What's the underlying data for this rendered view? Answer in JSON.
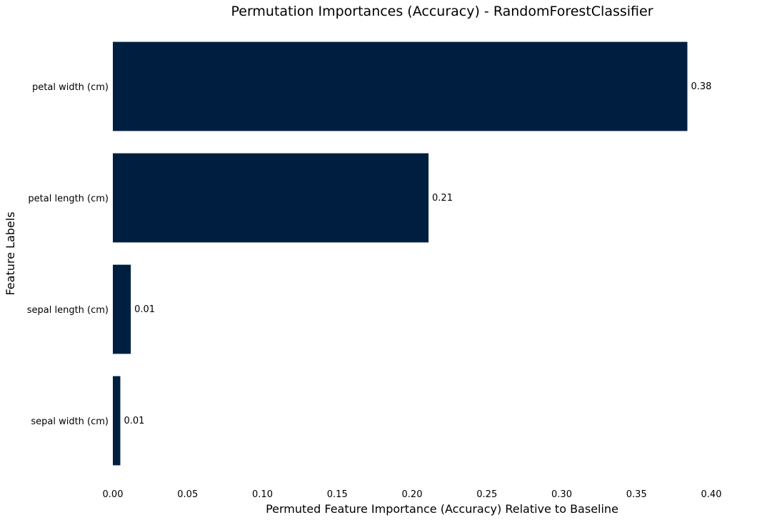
{
  "chart_data": {
    "type": "bar",
    "orientation": "horizontal",
    "title": "Permutation Importances (Accuracy) - RandomForestClassifier",
    "xlabel": "Permuted Feature Importance (Accuracy) Relative to Baseline",
    "ylabel": "Feature Labels",
    "categories": [
      "petal width (cm)",
      "petal length (cm)",
      "sepal length (cm)",
      "sepal width (cm)"
    ],
    "values": [
      0.384,
      0.211,
      0.012,
      0.005
    ],
    "data_labels": [
      "0.38",
      "0.21",
      "0.01",
      "0.01"
    ],
    "xlim": [
      0.0,
      0.4
    ],
    "xticks": [
      0.0,
      0.05,
      0.1,
      0.15,
      0.2,
      0.25,
      0.3,
      0.35,
      0.4
    ],
    "xtick_labels": [
      "0.00",
      "0.05",
      "0.10",
      "0.15",
      "0.20",
      "0.25",
      "0.30",
      "0.35",
      "0.40"
    ],
    "grid": false,
    "legend": "none",
    "bar_color": "#001f40"
  }
}
